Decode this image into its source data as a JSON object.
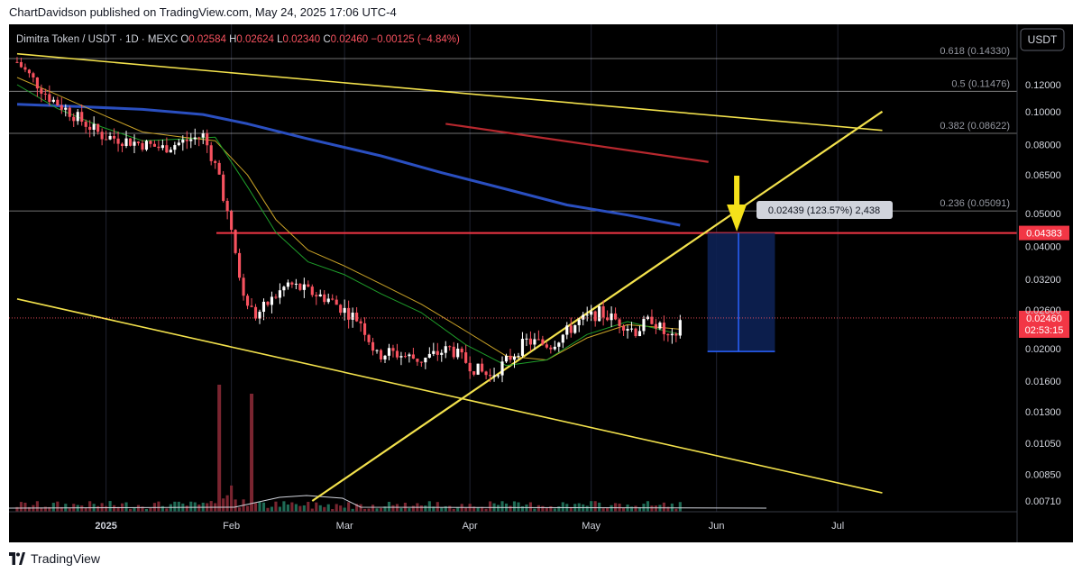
{
  "header": {
    "publisher_text": "ChartDavidson published on TradingView.com, May 24, 2025 17:06 UTC-4"
  },
  "footer": {
    "brand": "TradingView"
  },
  "chart_data": {
    "type": "candlestick",
    "symbol_line": "Dimitra Token / USDT · 1D · MEXC",
    "ohlc": {
      "o_label": "O",
      "o": "0.02584",
      "h_label": "H",
      "h": "0.02624",
      "l_label": "L",
      "l": "0.02340",
      "c_label": "C",
      "c": "0.02460",
      "change": "−0.00125 (−4.84%)"
    },
    "currency_button": "USDT",
    "y_scale": "log",
    "y_ticks": [
      "0.12000",
      "0.10000",
      "0.08000",
      "0.06500",
      "0.05000",
      "0.04000",
      "0.03200",
      "0.02600",
      "0.02000",
      "0.01600",
      "0.01300",
      "0.01050",
      "0.00850",
      "0.00710"
    ],
    "x_ticks": [
      {
        "label": "2025",
        "date": "2025-01-01",
        "bold": true
      },
      {
        "label": "Feb",
        "date": "2025-02-01"
      },
      {
        "label": "Mar",
        "date": "2025-03-01"
      },
      {
        "label": "Apr",
        "date": "2025-04-01"
      },
      {
        "label": "May",
        "date": "2025-05-01"
      },
      {
        "label": "Jun",
        "date": "2025-06-01"
      },
      {
        "label": "Jul",
        "date": "2025-07-01"
      }
    ],
    "last_price_label": "0.02460",
    "countdown_label": "02:53:15",
    "resistance_price_label": "0.04383",
    "fib_levels": [
      {
        "label": "0.618 (0.14330)",
        "price": 0.1433
      },
      {
        "label": "0.5 (0.11476)",
        "price": 0.11476
      },
      {
        "label": "0.382 (0.08622)",
        "price": 0.08622
      },
      {
        "label": "0.236 (0.05091)",
        "price": 0.05091
      }
    ],
    "resistance_level": 0.04383,
    "measure_label": "0.02439 (123.57%) 2,438",
    "trendlines": {
      "upper_resistance": [
        [
          "2024-12-10",
          0.148
        ],
        [
          "2025-07-12",
          0.088
        ]
      ],
      "ascending_support": [
        [
          "2025-02-21",
          0.0071
        ],
        [
          "2025-07-12",
          0.1
        ]
      ],
      "lower_channel": [
        [
          "2024-12-10",
          0.028
        ],
        [
          "2025-07-12",
          0.0075
        ]
      ],
      "red_short": [
        [
          "2025-03-26",
          0.092
        ],
        [
          "2025-05-30",
          0.071
        ]
      ]
    },
    "ma_200": [
      [
        "2024-12-10",
        0.105
      ],
      [
        "2024-12-25",
        0.1035
      ],
      [
        "2025-01-10",
        0.1015
      ],
      [
        "2025-01-25",
        0.098
      ],
      [
        "2025-02-05",
        0.092
      ],
      [
        "2025-02-20",
        0.083
      ],
      [
        "2025-03-10",
        0.074
      ],
      [
        "2025-03-25",
        0.066
      ],
      [
        "2025-04-10",
        0.059
      ],
      [
        "2025-04-25",
        0.053
      ],
      [
        "2025-05-10",
        0.0495
      ],
      [
        "2025-05-23",
        0.0462
      ]
    ],
    "ma_fast_orange": [
      [
        "2024-12-10",
        0.126
      ],
      [
        "2024-12-20",
        0.112
      ],
      [
        "2024-12-31",
        0.098
      ],
      [
        "2025-01-10",
        0.087
      ],
      [
        "2025-01-20",
        0.084
      ],
      [
        "2025-01-28",
        0.082
      ],
      [
        "2025-02-05",
        0.065
      ],
      [
        "2025-02-12",
        0.048
      ],
      [
        "2025-02-20",
        0.039
      ],
      [
        "2025-03-01",
        0.035
      ],
      [
        "2025-03-10",
        0.031
      ],
      [
        "2025-03-20",
        0.027
      ],
      [
        "2025-03-31",
        0.0225
      ],
      [
        "2025-04-10",
        0.019
      ],
      [
        "2025-04-20",
        0.0185
      ],
      [
        "2025-04-30",
        0.0215
      ],
      [
        "2025-05-10",
        0.0235
      ],
      [
        "2025-05-23",
        0.0228
      ]
    ],
    "ma_fast_green": [
      [
        "2024-12-10",
        0.12
      ],
      [
        "2024-12-20",
        0.102
      ],
      [
        "2024-12-31",
        0.09
      ],
      [
        "2025-01-10",
        0.082
      ],
      [
        "2025-01-20",
        0.083
      ],
      [
        "2025-01-28",
        0.084
      ],
      [
        "2025-02-05",
        0.06
      ],
      [
        "2025-02-12",
        0.044
      ],
      [
        "2025-02-20",
        0.036
      ],
      [
        "2025-03-01",
        0.033
      ],
      [
        "2025-03-10",
        0.029
      ],
      [
        "2025-03-20",
        0.0255
      ],
      [
        "2025-03-31",
        0.0205
      ],
      [
        "2025-04-10",
        0.0178
      ],
      [
        "2025-04-20",
        0.0185
      ],
      [
        "2025-04-30",
        0.022
      ],
      [
        "2025-05-10",
        0.024
      ],
      [
        "2025-05-23",
        0.022
      ]
    ],
    "key_points": [
      [
        "2024-12-10",
        0.14
      ],
      [
        "2024-12-18",
        0.11
      ],
      [
        "2024-12-31",
        0.085
      ],
      [
        "2025-01-15",
        0.078
      ],
      [
        "2025-01-25",
        0.085
      ],
      [
        "2025-01-29",
        0.065
      ],
      [
        "2025-02-02",
        0.038
      ],
      [
        "2025-02-04",
        0.028
      ],
      [
        "2025-02-07",
        0.025
      ],
      [
        "2025-02-15",
        0.031
      ],
      [
        "2025-02-25",
        0.028
      ],
      [
        "2025-03-05",
        0.024
      ],
      [
        "2025-03-09",
        0.019
      ],
      [
        "2025-03-12",
        0.0195
      ],
      [
        "2025-03-20",
        0.0185
      ],
      [
        "2025-03-27",
        0.02
      ],
      [
        "2025-04-02",
        0.0175
      ],
      [
        "2025-04-06",
        0.0165
      ],
      [
        "2025-04-15",
        0.021
      ],
      [
        "2025-04-21",
        0.0205
      ],
      [
        "2025-04-28",
        0.024
      ],
      [
        "2025-05-03",
        0.0255
      ],
      [
        "2025-05-08",
        0.024
      ],
      [
        "2025-05-12",
        0.0225
      ],
      [
        "2025-05-16",
        0.0245
      ],
      [
        "2025-05-20",
        0.0215
      ],
      [
        "2025-05-22",
        0.021
      ],
      [
        "2025-05-23",
        0.0246
      ]
    ],
    "colors": {
      "up": "#ffffff",
      "down": "#f7525f",
      "ma_blue": "#2a4fc0",
      "ma_orange": "#c9a227",
      "ma_green": "#1e9e2a",
      "trendline": "#f2e14c",
      "resistance": "#f23645",
      "fib": "#c8c8c8",
      "red_line": "#b7282e",
      "arrow": "#f5e11a",
      "measure": "#2962ff"
    }
  }
}
